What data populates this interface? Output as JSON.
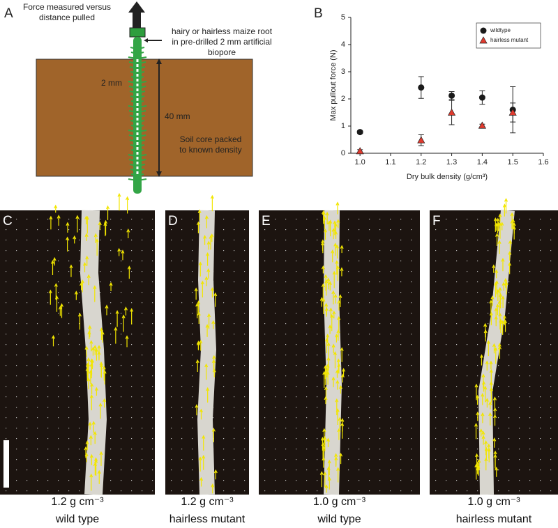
{
  "panel_a": {
    "label": "A",
    "force_label": [
      "Force measured versus",
      "distance pulled"
    ],
    "root_label": [
      "hairy or hairless maize root",
      "in pre-drilled 2 mm artificial",
      "biopore"
    ],
    "width_label": "2 mm",
    "depth_label": "40 mm",
    "soil_label": [
      "Soil core packed",
      "to known density"
    ]
  },
  "chart_data": {
    "type": "scatter",
    "panel_label": "B",
    "xlabel": "Dry bulk density (g/cm³)",
    "ylabel": "Max pullout force (N)",
    "x": [
      1.0,
      1.2,
      1.3,
      1.4,
      1.5
    ],
    "series": [
      {
        "name": "wildtype",
        "color": "#1a1a1a",
        "marker": "circle",
        "values": [
          0.78,
          2.42,
          2.12,
          2.05,
          1.6
        ],
        "errors": [
          0.05,
          0.4,
          0.15,
          0.25,
          0.85
        ]
      },
      {
        "name": "hairless mutant",
        "color": "#e03a2e",
        "marker": "triangle",
        "values": [
          0.08,
          0.48,
          1.5,
          1.02,
          1.5
        ],
        "errors": [
          0.05,
          0.2,
          0.45,
          0.05,
          0.35
        ]
      }
    ],
    "xlim": [
      0.97,
      1.6
    ],
    "ylim": [
      0,
      5
    ],
    "xticks": [
      {
        "value": 1,
        "label": "1.0"
      },
      1.1,
      1.2,
      1.3,
      1.4,
      1.5,
      1.6
    ],
    "yticks": [
      0,
      1,
      2,
      3,
      4,
      5
    ],
    "legend": "upper right"
  },
  "photos": [
    {
      "label": "C",
      "density": "1.2 g cm⁻³",
      "genotype": "wild type"
    },
    {
      "label": "D",
      "density": "1.2 g cm⁻³",
      "genotype": "hairless mutant"
    },
    {
      "label": "E",
      "density": "1.0 g cm⁻³",
      "genotype": "wild type"
    },
    {
      "label": "F",
      "density": "1.0 g cm⁻³",
      "genotype": "hairless mutant"
    }
  ]
}
